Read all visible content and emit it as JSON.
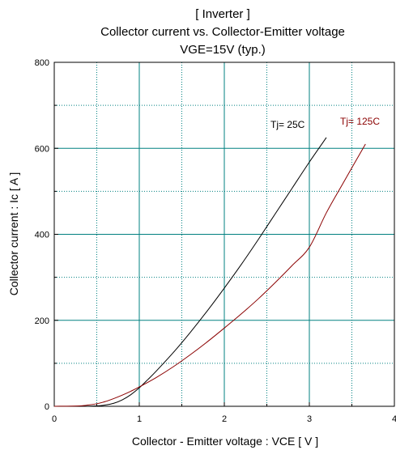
{
  "colors": {
    "background": "#ffffff",
    "grid_major": "#008080",
    "grid_minor": "#008080",
    "series_tj25": "#000000",
    "series_tj125": "#8b0000",
    "axis": "#000000"
  },
  "chart_data": {
    "type": "line",
    "title_lines": [
      "[ Inverter ]",
      "Collector current  vs.  Collector-Emitter voltage",
      "VGE=15V  (typ.)"
    ],
    "xlabel": "Collector - Emitter voltage  :  VCE  [ V ]",
    "ylabel": "Collector current  :  Ic  [ A ]",
    "xlim": [
      0,
      4
    ],
    "ylim": [
      0,
      800
    ],
    "x_ticks": [
      "0",
      "1",
      "2",
      "3",
      "4"
    ],
    "y_ticks": [
      "0",
      "200",
      "400",
      "600",
      "800"
    ],
    "grid": true,
    "series": [
      {
        "name": "Tj= 25C",
        "color": "#000000",
        "x": [
          0,
          0.3,
          0.5,
          0.6,
          0.7,
          0.8,
          0.9,
          1.0,
          1.1,
          1.2,
          1.4,
          1.6,
          1.8,
          2.0,
          2.2,
          2.4,
          2.6,
          2.8,
          3.0,
          3.2
        ],
        "y": [
          0,
          0,
          1,
          3,
          7,
          15,
          27,
          43,
          62,
          82,
          125,
          172,
          222,
          275,
          330,
          388,
          448,
          508,
          568,
          625
        ]
      },
      {
        "name": "Tj= 125C",
        "color": "#8b0000",
        "x": [
          0,
          0.3,
          0.4,
          0.5,
          0.6,
          0.7,
          0.8,
          0.9,
          1.0,
          1.2,
          1.4,
          1.6,
          1.8,
          2.0,
          2.2,
          2.4,
          2.6,
          2.8,
          3.0,
          3.2,
          3.4,
          3.66
        ],
        "y": [
          0,
          1,
          3,
          6,
          11,
          18,
          26,
          35,
          45,
          67,
          92,
          120,
          150,
          182,
          215,
          250,
          288,
          328,
          370,
          450,
          520,
          610
        ]
      }
    ]
  }
}
